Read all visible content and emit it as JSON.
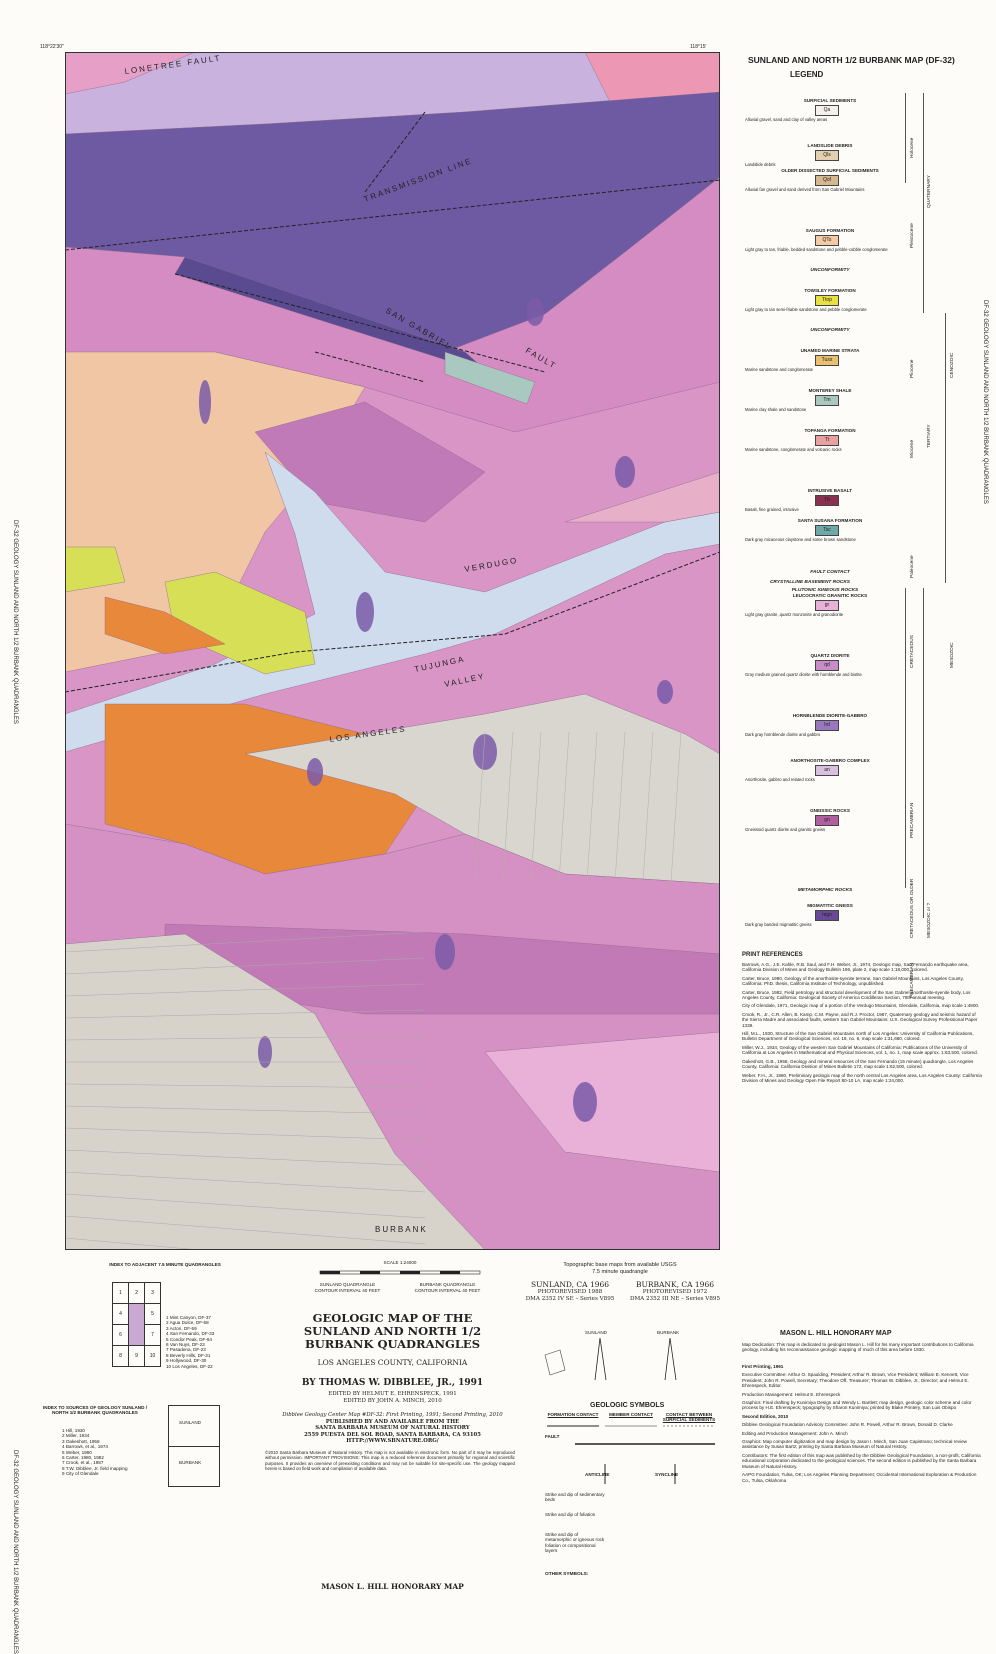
{
  "header": {
    "map_title": "SUNLAND AND NORTH 1/2 BURBANK MAP (DF-32)",
    "legend_title": "LEGEND"
  },
  "side_label": "DF-32 GEOLOGY SUNLAND AND NORTH 1/2 BURBANK QUADRANGLES",
  "corner_coords": [
    "118°22'30\"",
    "118°15'"
  ],
  "map_labels": [
    "LONETREE FAULT",
    "TRANSMISSION LINE",
    "SAN GABRIEL",
    "FAULT",
    "TUJUNGA",
    "VALLEY",
    "LOS ANGELES",
    "VERDUGO",
    "BURBANK"
  ],
  "legend": {
    "units": [
      {
        "code": "Qa",
        "heading": "SURFICIAL SEDIMENTS",
        "desc": "Alluvial gravel, sand and clay of valley areas",
        "color": "#f4f1ec"
      },
      {
        "code": "Qls",
        "heading": "LANDSLIDE DEBRIS",
        "desc": "Landslide debris",
        "color": "#e2d0b0"
      },
      {
        "code": "Qof",
        "heading": "OLDER DISSECTED SURFICIAL SEDIMENTS",
        "desc": "Alluvial fan gravel and sand derived from San Gabriel Mountains",
        "color": "#d6b890"
      },
      {
        "code": "QTs",
        "heading": "SAUGUS FORMATION",
        "desc": "Light gray to tan, friable, bedded sandstone and pebble-cobble conglomerate",
        "color": "#f6c9a6"
      },
      {
        "code": "Ttop",
        "heading": "TOWSLEY FORMATION",
        "desc": "Light gray to tan semi-friable sandstone and pebble conglomerate",
        "color": "#e8e040"
      },
      {
        "code": "Tuss",
        "heading": "UNAMED MARINE STRATA",
        "desc": "Marine sandstone and conglomerate",
        "color": "#e9c070"
      },
      {
        "code": "Tm",
        "heading": "MONTEREY SHALE",
        "desc": "Marine clay shale and sandstone",
        "color": "#a8c8c0"
      },
      {
        "code": "Tt",
        "heading": "TOPANGA FORMATION",
        "desc": "Marine sandstone, conglomerate and volcanic rocks",
        "color": "#e8a0a0"
      },
      {
        "code": "Tb",
        "heading": "INTRUSIVE BASALT",
        "desc": "Basalt, fine grained, intrusive",
        "color": "#8a3050"
      },
      {
        "code": "Tsc",
        "heading": "SANTA SUSANA FORMATION",
        "desc": "Dark gray micaceous claystone and some brown sandstone",
        "color": "#6fa8a8"
      },
      {
        "code": "gr",
        "heading": "LEUCOCRATIC GRANITIC ROCKS",
        "desc": "Light gray granite, quartz monzonite and granodiorite",
        "color": "#e9b0d8"
      },
      {
        "code": "qd",
        "heading": "QUARTZ DIORITE",
        "desc": "Gray medium grained quartz diorite with hornblende and biotite",
        "color": "#c88cc8"
      },
      {
        "code": "hd",
        "heading": "HORNBLENDE DIORITE-GABBRO",
        "desc": "Dark gray hornblende diorite and gabbro",
        "color": "#9a78c0"
      },
      {
        "code": "an",
        "heading": "ANORTHOSITE-GABBRO COMPLEX",
        "desc": "Anorthosite, gabbro and related rocks",
        "color": "#d8c0e0"
      },
      {
        "code": "gn",
        "heading": "GNEISSIC ROCKS",
        "desc": "Gneissoid quartz diorite and granitic gneiss",
        "color": "#b060a0"
      },
      {
        "code": "mgn",
        "heading": "MIGMATITIC GNEISS",
        "desc": "Dark gray banded migmatitic gneiss",
        "color": "#6a4a98"
      }
    ],
    "dividers": [
      "UNCONFORMITY",
      "UNCONFORMITY",
      "FAULT CONTACT",
      "CRYSTALLINE BASEMENT ROCKS",
      "PLUTONIC IGNEOUS ROCKS",
      "METAMORPHIC ROCKS"
    ],
    "ages": [
      "Holocene",
      "QUATERNARY",
      "Pleistocene",
      "Pliocene",
      "CENOZOIC",
      "Miocene",
      "TERTIARY",
      "Paleocene",
      "CRETACEOUS",
      "MESOZOIC",
      "PRECAMBRIAN",
      "CRETACEOUS OR OLDER",
      "MESOZOIC or ?",
      "PRECAMBRIAN"
    ]
  },
  "references": {
    "title": "PRINT REFERENCES",
    "items": [
      "Barrows, A.G., J.E. Kahle, R.B. Saul, and F.H. Weber, Jr., 1974, Geologic map, San Fernando earthquake area, California Division of Mines and Geology Bulletin 196, plate 2, map scale 1:18,000, colored.",
      "Carter, Bruce, 1980, Geology of the anorthosite-syenite terrane, San Gabriel Mountains, Los Angeles County, California: PhD. thesis, California Institute of Technology, unpublished.",
      "Carter, Bruce, 1982, Field petrology and structural development of the San Gabriel anorthosite-syenite body, Los Angeles County, California: Geological Society of America Cordilleran Section, 78th annual meeting.",
      "City of Glendale, 1971, Geologic map of a portion of the Verdugo Mountains, Glendale, California, map scale 1:4800.",
      "Crook, R., Jr., C.R. Allen, B. Kamp, C.M. Payne, and R.J. Proctor, 1987, Quaternary geology and seismic hazard of the Sierra Madre and associated faults, western San Gabriel Mountains: U.S. Geological Survey Professional Paper 1339.",
      "Hill, M.L., 1930, Structure of the San Gabriel Mountains north of Los Angeles: University of California Publications, Bulletin Department of Geological Sciences, vol. 19, no. 6, map scale 1:31,680, colored.",
      "Miller, W.J., 1934, Geology of the western San Gabriel Mountains of California: Publications of the University of California at Los Angeles in Mathematical and Physical Sciences, vol. 1, no. 1, map scale approx. 1:63,500, colored.",
      "Oakeshott, G.B., 1958, Geology and mineral resources of the San Fernando (15 minute) quadrangle, Los Angeles County, California: California Division of Mines Bulletin 172, map scale 1:62,500, colored.",
      "Weber, F.H., Jr., 1980, Preliminary geologic map of the north central Los Angeles area, Los Angeles County: California Division of Mines and Geology Open File Report 80-10 LA, map scale 1:24,000."
    ]
  },
  "index": {
    "title": "INDEX TO ADJACENT 7.5 MINUTE QUADRANGLES",
    "cells": [
      "1",
      "2",
      "3",
      "4",
      "5",
      "6",
      "7",
      "8",
      "9",
      "10"
    ],
    "names": [
      "1 Mint Canyon, DF-37",
      "2 Agua Dulce, DF-58",
      "3 Acton, DF-59",
      "4 San Fernando, DF-33",
      "5 Condor Peak, DF-64",
      "6 Van Nuys, DF-23",
      "7 Pasadena, DF-23",
      "8 Beverly Hills, DF-31",
      "9 Hollywood, DF-30",
      "10 Los Angeles, DF-22"
    ]
  },
  "sources": {
    "title": "INDEX TO SOURCES OF GEOLOGY SUNLAND / NORTH 1/2 BURBANK QUADRANGLES",
    "items": [
      "1 Hill, 1930",
      "2 Miller, 1934",
      "3 Oakeshott, 1958",
      "4 Barrows, et al., 1974",
      "5 Weber, 1980",
      "6 Carter, 1980, 1982",
      "7 Crook, et al., 1987",
      "8 T.W. Dibblee, Jr. field mapping",
      "9 City of Glendale"
    ],
    "boxes": [
      "SUNLAND",
      "BURBANK"
    ]
  },
  "scale": {
    "title": "SCALE 1:24000",
    "quads": [
      "SUNLAND QUADRANGLE",
      "BURBANK QUADRANGLE"
    ],
    "contours": [
      "CONTOUR INTERVAL 40 FEET",
      "CONTOUR INTERVAL 40 FEET"
    ]
  },
  "title_block": {
    "title": "GEOLOGIC MAP OF THE SUNLAND AND NORTH 1/2 BURBANK QUADRANGLES",
    "county": "LOS ANGELES COUNTY, CALIFORNIA",
    "author": "BY THOMAS W. DIBBLEE, JR., 1991",
    "editors": [
      "EDITED BY HELMUT E. EHRENSPECK, 1991",
      "EDITED BY JOHN A. MINCH, 2010"
    ],
    "publisher": [
      "Dibblee Geology Center Map #DF-32: First Printing, 1991; Second Printing, 2010",
      "PUBLISHED BY AND AVAILABLE FROM THE",
      "SANTA BARBARA MUSEUM OF NATURAL HISTORY",
      "2559 PUESTA DEL SOL ROAD, SANTA BARBARA, CA 93105",
      "HTTP://WWW.SBNATURE.ORG/"
    ],
    "fine_print": "©2010 Santa Barbara Museum of Natural History. This map is not available in electronic form. No part of it may be reproduced without permission. IMPORTANT PROVISIONS: This map is a reduced reference document primarily for regional and scientific purposes. It provides an overview of preexisting conditions and may not be suitable for site-specific use. The geology mapped herein is based on field work and compilation of available data.",
    "footer": "MASON L. HILL HONORARY MAP"
  },
  "base_maps": {
    "title": "Topographic base maps from available USGS 7.5 minute quadrangle",
    "sunland": [
      "SUNLAND, CA 1966",
      "PHOTOREVISED 1988",
      "DMA 2352 IV SE – Series V895"
    ],
    "burbank": [
      "BURBANK, CA 1966",
      "PHOTOREVISED 1972",
      "DMA 2352 III NE – Series V895"
    ],
    "arrows": [
      "SUNLAND",
      "BURBANK"
    ]
  },
  "symbols": {
    "title": "GEOLOGIC SYMBOLS",
    "columns": [
      "FORMATION CONTACT",
      "MEMBER CONTACT",
      "CONTACT BETWEEN SURFICIAL SEDIMENTS"
    ],
    "items": [
      "FAULT",
      "ANTICLINE",
      "SYNCLINE",
      "Strike and dip of sedimentary beds",
      "Strike and dip of foliation",
      "Strike and dip of metamorphic or igneous rock foliation or compositional layers"
    ],
    "other": "OTHER SYMBOLS:"
  },
  "honorary": {
    "title": "MASON L. HILL HONORARY MAP",
    "dedication": "Map Dedication: This map is dedicated to geologist Mason L. Hill for his many important contributions to California geology, including his reconnaissance geologic mapping of much of this area before 1930.",
    "paragraphs": [
      "First Printing, 1991",
      "Executive Committee: Arthur O. Spaulding, President; Arthur R. Brown, Vice President; William E. Kennett, Vice President; John R. Powell, Secretary; Theodore Off, Treasurer; Thomas W. Dibblee, Jr., Director; and Helmut E. Ehrenspeck, Editor.",
      "Production Management: Helmut E. Ehrenspeck",
      "Graphics: Final drafting by Kunimiya Design and Wendy L. Bartlett; map design, geologic color scheme and color process by H.E. Ehrenspeck; typography by Sharon Kunimiya; printed by Blake Printery, San Luis Obispo",
      "Second Edition, 2010",
      "Dibblee Geological Foundation Advisory Committee: John R. Powell, Arthur R. Brown, Donald D. Clarke",
      "Editing and Production Management: John A. Minch",
      "Graphics: Map computer digitization and map design by Jason I. Minch, San Juan Capistrano; technical review assistance by Susan Bartz; printing by Santa Barbara Museum of Natural History.",
      "Contributors: The first edition of this map was published by the Dibblee Geological Foundation, a non-profit, California educational corporation dedicated to the geological sciences. The second edition is published by the Santa Barbara Museum of Natural History.",
      "AAPG Foundation, Tulsa, OK; Los Angeles Planning Department; Occidental International Exploration & Production Co., Tulsa, Oklahoma"
    ]
  }
}
